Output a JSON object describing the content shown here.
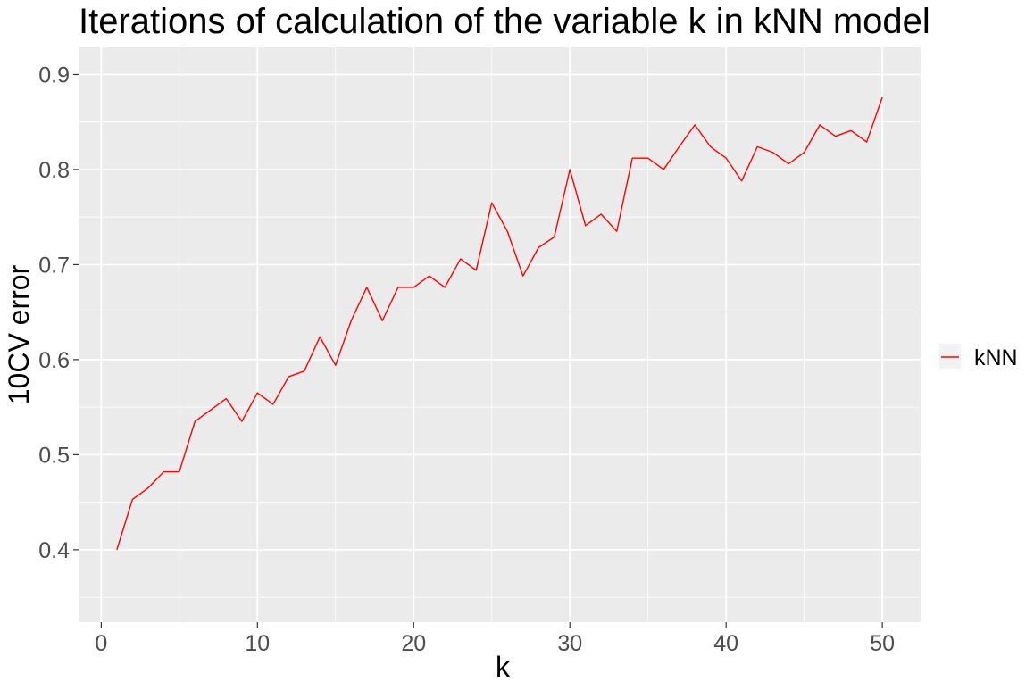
{
  "chart_data": {
    "type": "line",
    "title": "Iterations of calculation of the variable k in kNN model",
    "xlabel": "k",
    "ylabel": "10CV error",
    "xlim": [
      -1.45,
      52.45
    ],
    "ylim": [
      0.3238,
      0.9286
    ],
    "x_ticks": [
      0,
      10,
      20,
      30,
      40,
      50
    ],
    "y_ticks": [
      0.4,
      0.5,
      0.6,
      0.7,
      0.8,
      0.9
    ],
    "x_tick_labels": [
      "0",
      "10",
      "20",
      "30",
      "40",
      "50"
    ],
    "y_tick_labels": [
      "0.4",
      "0.5",
      "0.6",
      "0.7",
      "0.8",
      "0.9"
    ],
    "grid": true,
    "legend": {
      "position": "right",
      "entries": [
        "kNN"
      ]
    },
    "series": [
      {
        "name": "kNN",
        "color": "#ff0000",
        "x": [
          1,
          2,
          3,
          4,
          5,
          6,
          7,
          8,
          9,
          10,
          11,
          12,
          13,
          14,
          15,
          16,
          17,
          18,
          19,
          20,
          21,
          22,
          23,
          24,
          25,
          26,
          27,
          28,
          29,
          30,
          31,
          32,
          33,
          34,
          35,
          36,
          37,
          38,
          39,
          40,
          41,
          42,
          43,
          44,
          45,
          46,
          47,
          48,
          49,
          50
        ],
        "values": [
          0.4,
          0.453,
          0.465,
          0.482,
          0.482,
          0.535,
          0.547,
          0.559,
          0.535,
          0.565,
          0.553,
          0.582,
          0.588,
          0.624,
          0.594,
          0.641,
          0.676,
          0.641,
          0.676,
          0.676,
          0.688,
          0.676,
          0.706,
          0.694,
          0.765,
          0.735,
          0.688,
          0.718,
          0.729,
          0.8,
          0.741,
          0.753,
          0.735,
          0.812,
          0.812,
          0.8,
          0.824,
          0.847,
          0.824,
          0.812,
          0.788,
          0.824,
          0.818,
          0.806,
          0.818,
          0.847,
          0.835,
          0.841,
          0.829,
          0.876
        ]
      }
    ]
  }
}
